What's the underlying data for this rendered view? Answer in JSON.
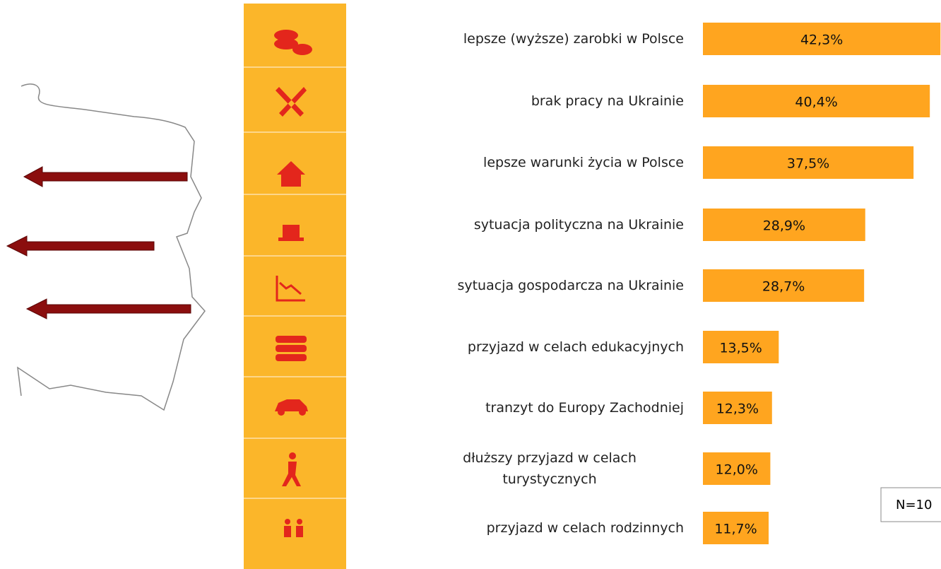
{
  "chart_data": {
    "type": "bar",
    "categories": [
      "lepsze (wyższe) zarobki w Polsce",
      "brak pracy na Ukrainie",
      "lepsze warunki życia w Polsce",
      "sytuacja polityczna na Ukrainie",
      "sytuacja gospodarcza na Ukrainie",
      "przyjazd w celach edukacyjnych",
      "tranzyt do Europy Zachodniej",
      "dłuższy przyjazd w celach turystycznych",
      "przyjazd w celach rodzinnych"
    ],
    "values": [
      42.3,
      40.4,
      37.5,
      28.9,
      28.7,
      13.5,
      12.3,
      12.0,
      11.7
    ],
    "value_labels": [
      "42,3%",
      "40,4%",
      "37,5%",
      "28,9%",
      "28,7%",
      "13,5%",
      "12,3%",
      "12,0%",
      "11,7%"
    ],
    "color": "#ffa51f",
    "annotation": "N=10"
  }
}
